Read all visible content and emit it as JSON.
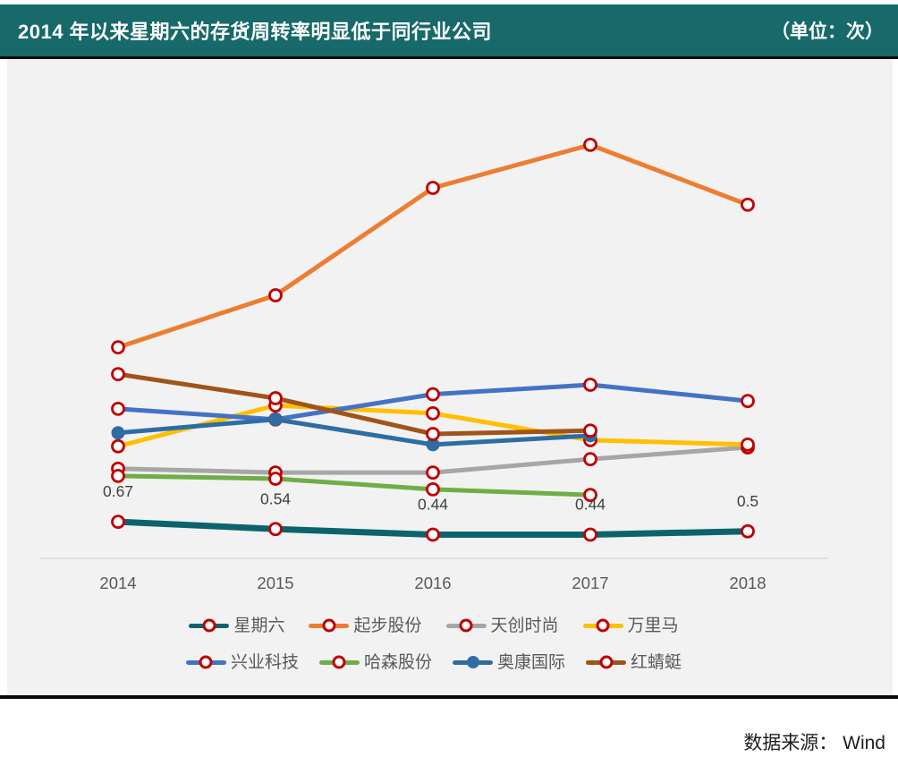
{
  "header": {
    "title": "2014 年以来星期六的存货周转率明显低于同行业公司",
    "unit_label": "（单位：次）"
  },
  "source_note": "数据来源： Wind",
  "colors": {
    "header_bg": "#17696A",
    "panel_bg": "#F2F2F2",
    "axis_line": "#D9D9D9",
    "tick_text": "#595959",
    "data_label_text": "#404040",
    "legend_text": "#595959",
    "marker_ring": "#C00000"
  },
  "chart_data": {
    "type": "line",
    "title": "2014 年以来星期六的存货周转率明显低于同行业公司",
    "unit": "次",
    "categories": [
      "2014",
      "2015",
      "2016",
      "2017",
      "2018"
    ],
    "series": [
      {
        "name": "星期六",
        "color": "#0D636C",
        "marker": "ring",
        "line_width": 7,
        "values": [
          0.67,
          0.54,
          0.44,
          0.44,
          0.5
        ],
        "point_labels": [
          "0.67",
          "0.54",
          "0.44",
          "0.44",
          "0.5"
        ]
      },
      {
        "name": "起步股份",
        "color": "#ED7D31",
        "marker": "ring",
        "line_width": 5,
        "values": [
          3.79,
          4.72,
          6.64,
          7.41,
          6.34
        ]
      },
      {
        "name": "天创时尚",
        "color": "#A6A6A6",
        "marker": "ring",
        "line_width": 5,
        "values": [
          1.62,
          1.55,
          1.55,
          1.79,
          2.0
        ]
      },
      {
        "name": "万里马",
        "color": "#FFC000",
        "marker": "ring",
        "line_width": 5,
        "values": [
          2.02,
          2.75,
          2.61,
          2.13,
          2.05
        ]
      },
      {
        "name": "兴业科技",
        "color": "#4472C4",
        "marker": "ring",
        "line_width": 5,
        "values": [
          2.69,
          2.5,
          2.95,
          3.12,
          2.83
        ]
      },
      {
        "name": "哈森股份",
        "color": "#70AD47",
        "marker": "ring",
        "line_width": 5,
        "values": [
          1.49,
          1.44,
          1.25,
          1.15,
          null
        ]
      },
      {
        "name": "奥康国际",
        "color": "#2E6DA4",
        "marker": "dot",
        "line_width": 5,
        "values": [
          2.26,
          2.5,
          2.05,
          2.21,
          null
        ]
      },
      {
        "name": "红蜻蜓",
        "color": "#A0541A",
        "marker": "ring",
        "line_width": 5,
        "values": [
          3.31,
          2.88,
          2.24,
          2.3,
          null
        ]
      }
    ],
    "ylim": [
      0,
      8.9
    ],
    "grid": false,
    "x_axis_line": true,
    "legend_position": "bottom",
    "legend_rows": [
      [
        0,
        1,
        2,
        3
      ],
      [
        4,
        5,
        6,
        7
      ]
    ]
  }
}
